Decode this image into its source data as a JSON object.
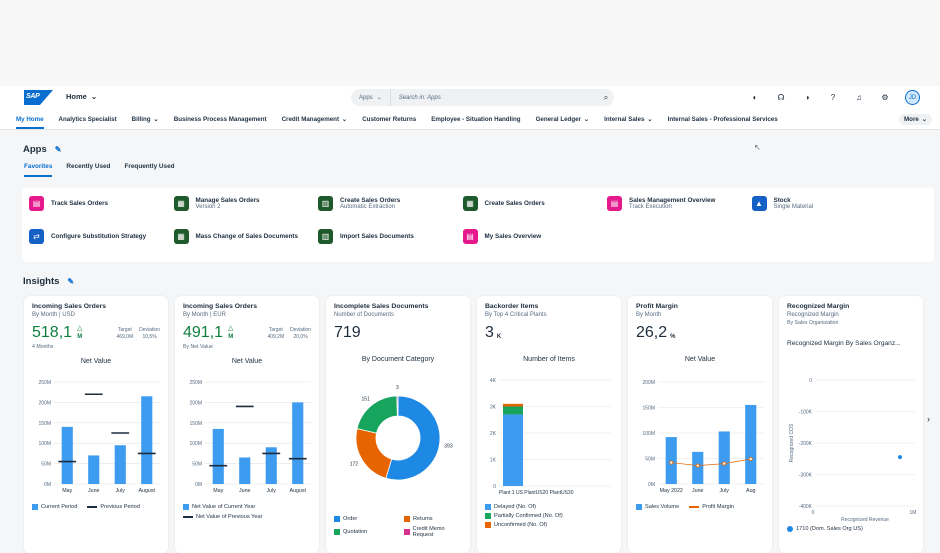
{
  "shell": {
    "logo": "SAP",
    "home": "Home",
    "search_scope": "Apps",
    "search_placeholder": "Search in: Apps",
    "avatar": "JD"
  },
  "nav": {
    "items": [
      {
        "label": "My Home",
        "dd": false
      },
      {
        "label": "Analytics Specialist",
        "dd": false
      },
      {
        "label": "Billing",
        "dd": true
      },
      {
        "label": "Business Process Management",
        "dd": false
      },
      {
        "label": "Credit Management",
        "dd": true
      },
      {
        "label": "Customer Returns",
        "dd": false
      },
      {
        "label": "Employee - Situation Handling",
        "dd": false
      },
      {
        "label": "General Ledger",
        "dd": true
      },
      {
        "label": "Internal Sales",
        "dd": true
      },
      {
        "label": "Internal Sales - Professional Services",
        "dd": false
      }
    ],
    "more": "More"
  },
  "apps": {
    "title": "Apps",
    "tabs": [
      "Favorites",
      "Recently Used",
      "Frequently Used"
    ],
    "tiles": [
      {
        "title": "Track Sales Orders",
        "sub": "",
        "color": "#e5188c"
      },
      {
        "title": "Manage Sales Orders",
        "sub": "Version 2",
        "color": "#1f5a2c"
      },
      {
        "title": "Create Sales Orders",
        "sub": "Automatic Extraction",
        "color": "#1f5a2c"
      },
      {
        "title": "Create Sales Orders",
        "sub": "",
        "color": "#1f5a2c"
      },
      {
        "title": "Sales Management Overview",
        "sub": "Track Execution",
        "color": "#e5188c"
      },
      {
        "title": "Stock",
        "sub": "Single Material",
        "color": "#1560c4"
      },
      {
        "title": "Configure Substitution Strategy",
        "sub": "",
        "color": "#1560c4"
      },
      {
        "title": "Mass Change of Sales Documents",
        "sub": "",
        "color": "#1f5a2c"
      },
      {
        "title": "Import Sales Documents",
        "sub": "",
        "color": "#1f5a2c"
      },
      {
        "title": "My Sales Overview",
        "sub": "",
        "color": "#e5188c"
      }
    ]
  },
  "insights": {
    "title": "Insights",
    "cards": [
      {
        "title": "Incoming Sales Orders",
        "sub": "By Month | USD",
        "value": "518,1",
        "unit": "M",
        "target_label": "Target",
        "target": "469,0M",
        "dev_label": "Deviation",
        "dev": "10,5%",
        "note": "4 Months",
        "chart_title": "Net Value"
      },
      {
        "title": "Incoming Sales Orders",
        "sub": "By Month | EUR",
        "value": "491,1",
        "unit": "M",
        "target_label": "Target",
        "target": "409,2M",
        "dev_label": "Deviation",
        "dev": "20,0%",
        "note": "By Net Value",
        "chart_title": "Net Value"
      },
      {
        "title": "Incomplete Sales Documents",
        "sub": "Number of Documents",
        "value": "719",
        "chart_title": "By Document Category"
      },
      {
        "title": "Backorder Items",
        "sub": "By Top 4 Critical Plants",
        "value": "3",
        "unit": "K",
        "chart_title": "Number of Items"
      },
      {
        "title": "Profit Margin",
        "sub": "By Month",
        "value": "26,2",
        "unit": "%",
        "chart_title": "Net Value"
      },
      {
        "title": "Recognized Margin",
        "sub": "Recognized Margin",
        "sub2": "By Sales Organization",
        "chart_title": "Recognized Margin By Sales Organz..."
      }
    ]
  },
  "chart_data": [
    {
      "type": "bar",
      "title": "Net Value",
      "categories": [
        "May",
        "June",
        "July",
        "August"
      ],
      "series": [
        {
          "name": "Current Period",
          "values": [
            140,
            70,
            95,
            215
          ]
        },
        {
          "name": "Previous Period",
          "values": [
            55,
            220,
            125,
            75
          ]
        }
      ],
      "ylim": [
        0,
        250
      ],
      "ticks": [
        "0M",
        "50M",
        "100M",
        "150M",
        "200M",
        "250M"
      ]
    },
    {
      "type": "bar",
      "title": "Net Value",
      "categories": [
        "May",
        "June",
        "July",
        "August"
      ],
      "series": [
        {
          "name": "Net Value of Current Year",
          "values": [
            135,
            65,
            90,
            200
          ]
        },
        {
          "name": "Net Value of Previous Year",
          "values": [
            45,
            190,
            75,
            62
          ]
        }
      ],
      "ylim": [
        0,
        250
      ],
      "ticks": [
        "0M",
        "50M",
        "100M",
        "150M",
        "200M",
        "250M"
      ]
    },
    {
      "type": "pie",
      "title": "By Document Category",
      "labels": [
        "Order",
        "Returns",
        "Quotation",
        "Credit Memo Request"
      ],
      "values": [
        393,
        172,
        151,
        3
      ],
      "colors": [
        "#1e88e5",
        "#e76500",
        "#17a45c",
        "#d6308e"
      ]
    },
    {
      "type": "bar",
      "title": "Number of Items",
      "categories": [
        "Plant 1 US",
        "Plant US20",
        "Plant US30"
      ],
      "series": [
        {
          "name": "Delayed (No. Of)",
          "values": [
            2.7,
            0,
            0
          ]
        },
        {
          "name": "Partially Confirmed (No. Of)",
          "values": [
            0.3,
            0,
            0
          ]
        },
        {
          "name": "Unconfirmed (No. Of)",
          "values": [
            0.1,
            0,
            0
          ]
        }
      ],
      "ylim": [
        0,
        4
      ],
      "ticks": [
        "0",
        "1K",
        "2K",
        "3K",
        "4K"
      ]
    },
    {
      "type": "bar",
      "title": "Net Value",
      "categories": [
        "May 2022",
        "June",
        "July",
        "Aug"
      ],
      "series": [
        {
          "name": "Sales Volume",
          "values": [
            92,
            63,
            103,
            155
          ]
        },
        {
          "name": "Profit Margin",
          "values": [
            42,
            36,
            40,
            49
          ]
        }
      ],
      "ylim": [
        0,
        200
      ],
      "ticks": [
        "0M",
        "50M",
        "100M",
        "150M",
        "200M"
      ]
    },
    {
      "type": "scatter",
      "title": "Recognized Margin By Sales Organz...",
      "xlabel": "Recognized Revenue",
      "ylabel": "Recognized COS",
      "x_ticks": [
        "0",
        "1M"
      ],
      "y_ticks": [
        "0",
        "-100K",
        "-200K",
        "-300K",
        "-400K"
      ],
      "series": [
        {
          "name": "1710 (Dom. Sales Org US)",
          "points": [
            [
              0.85,
              -245000
            ]
          ]
        }
      ]
    }
  ]
}
